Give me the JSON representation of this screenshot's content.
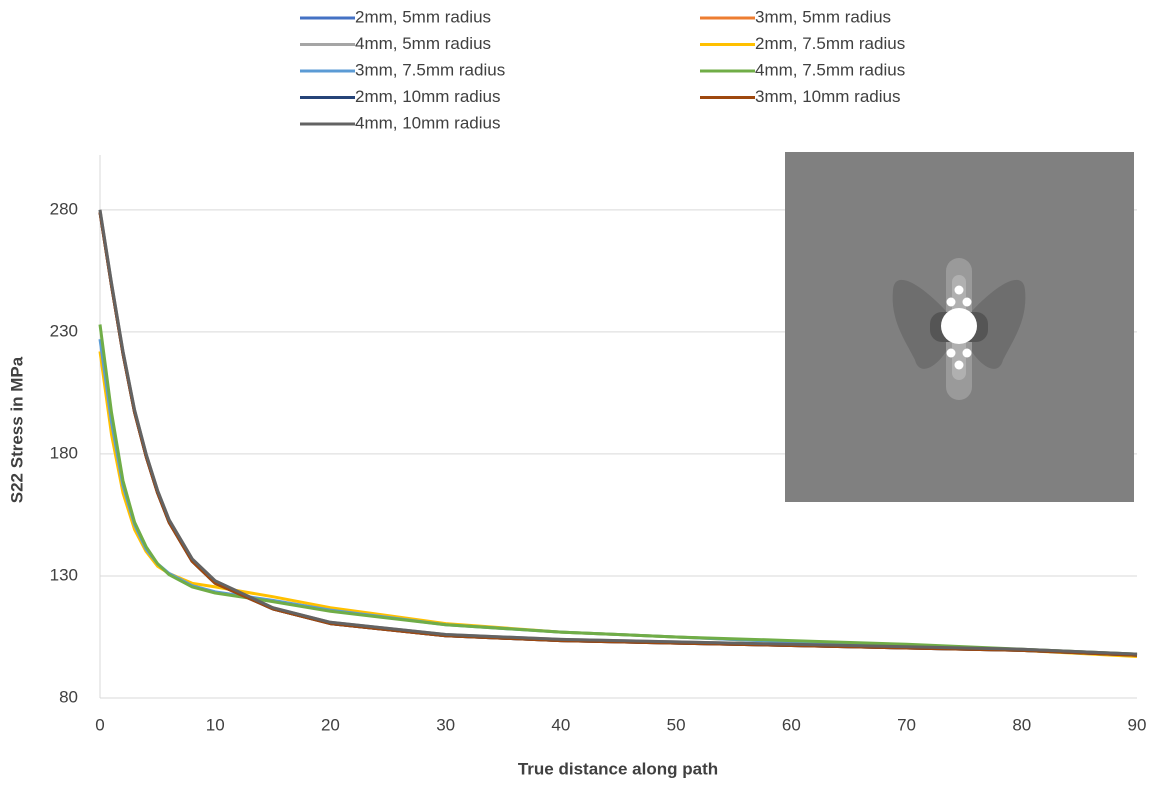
{
  "chart_data": {
    "type": "line",
    "x_label": "True distance along path",
    "y_label": "S22 Stress in MPa",
    "x": [
      0,
      1,
      2,
      3,
      4,
      5,
      6,
      8,
      10,
      15,
      20,
      30,
      40,
      50,
      60,
      70,
      80,
      90
    ],
    "xlim": [
      0,
      90
    ],
    "xticks": [
      0,
      10,
      20,
      30,
      40,
      50,
      60,
      70,
      80,
      90
    ],
    "ylim": [
      80,
      300
    ],
    "yticks": [
      80,
      130,
      180,
      230,
      280
    ],
    "grid": true,
    "series": [
      {
        "name": "2mm, 5mm radius",
        "color": "#4472c4",
        "values": [
          279,
          249,
          221,
          197,
          179,
          164,
          152,
          136,
          127,
          116.5,
          110.5,
          105.5,
          103.5,
          102.5,
          101.5,
          100.5,
          99.5,
          97.5
        ]
      },
      {
        "name": "3mm, 5mm radius",
        "color": "#ed7d31",
        "values": [
          279,
          249,
          221,
          197,
          179,
          164,
          152,
          136,
          127,
          116.5,
          110.5,
          105.5,
          103.5,
          102.5,
          101.5,
          100.5,
          99.5,
          97.5
        ]
      },
      {
        "name": "4mm, 5mm radius",
        "color": "#a5a5a5",
        "values": [
          280,
          250,
          222,
          198,
          180,
          165,
          153,
          137,
          128,
          117,
          111,
          106,
          104,
          103,
          102,
          101,
          100,
          98
        ]
      },
      {
        "name": "2mm, 7.5mm radius",
        "color": "#ffc000",
        "values": [
          222,
          188,
          164,
          149,
          140,
          134,
          131,
          127,
          125.5,
          121.5,
          117,
          110.5,
          107,
          105,
          103,
          101.5,
          99.5,
          97
        ]
      },
      {
        "name": "3mm, 7.5mm radius",
        "color": "#5b9bd5",
        "values": [
          227,
          193,
          167,
          151,
          141,
          135,
          131,
          126,
          123.5,
          120,
          116,
          110,
          107,
          105,
          103,
          101.5,
          99.5,
          97.5
        ]
      },
      {
        "name": "4mm, 7.5mm radius",
        "color": "#70ad47",
        "values": [
          233,
          197,
          169,
          152,
          142,
          135,
          130.5,
          125.5,
          123,
          119.5,
          115.5,
          110,
          107,
          105,
          103.5,
          102,
          100,
          98
        ]
      },
      {
        "name": "2mm, 10mm radius",
        "color": "#264478",
        "values": [
          279,
          249,
          221,
          197,
          179,
          164,
          152,
          136,
          127,
          116.5,
          110.5,
          105.5,
          103.5,
          102.5,
          101.5,
          100.5,
          99.5,
          97.5
        ]
      },
      {
        "name": "3mm, 10mm radius",
        "color": "#9e480e",
        "values": [
          279,
          249,
          221,
          197,
          179,
          164,
          152,
          136,
          127,
          116.5,
          110.5,
          105.5,
          103.5,
          102.5,
          101.5,
          100.5,
          99.5,
          97.5
        ]
      },
      {
        "name": "4mm, 10mm radius",
        "color": "#636363",
        "values": [
          280,
          250,
          222,
          198,
          180,
          165,
          153,
          137,
          128,
          117,
          111,
          106,
          104,
          103,
          102,
          101,
          100,
          98
        ]
      }
    ]
  }
}
